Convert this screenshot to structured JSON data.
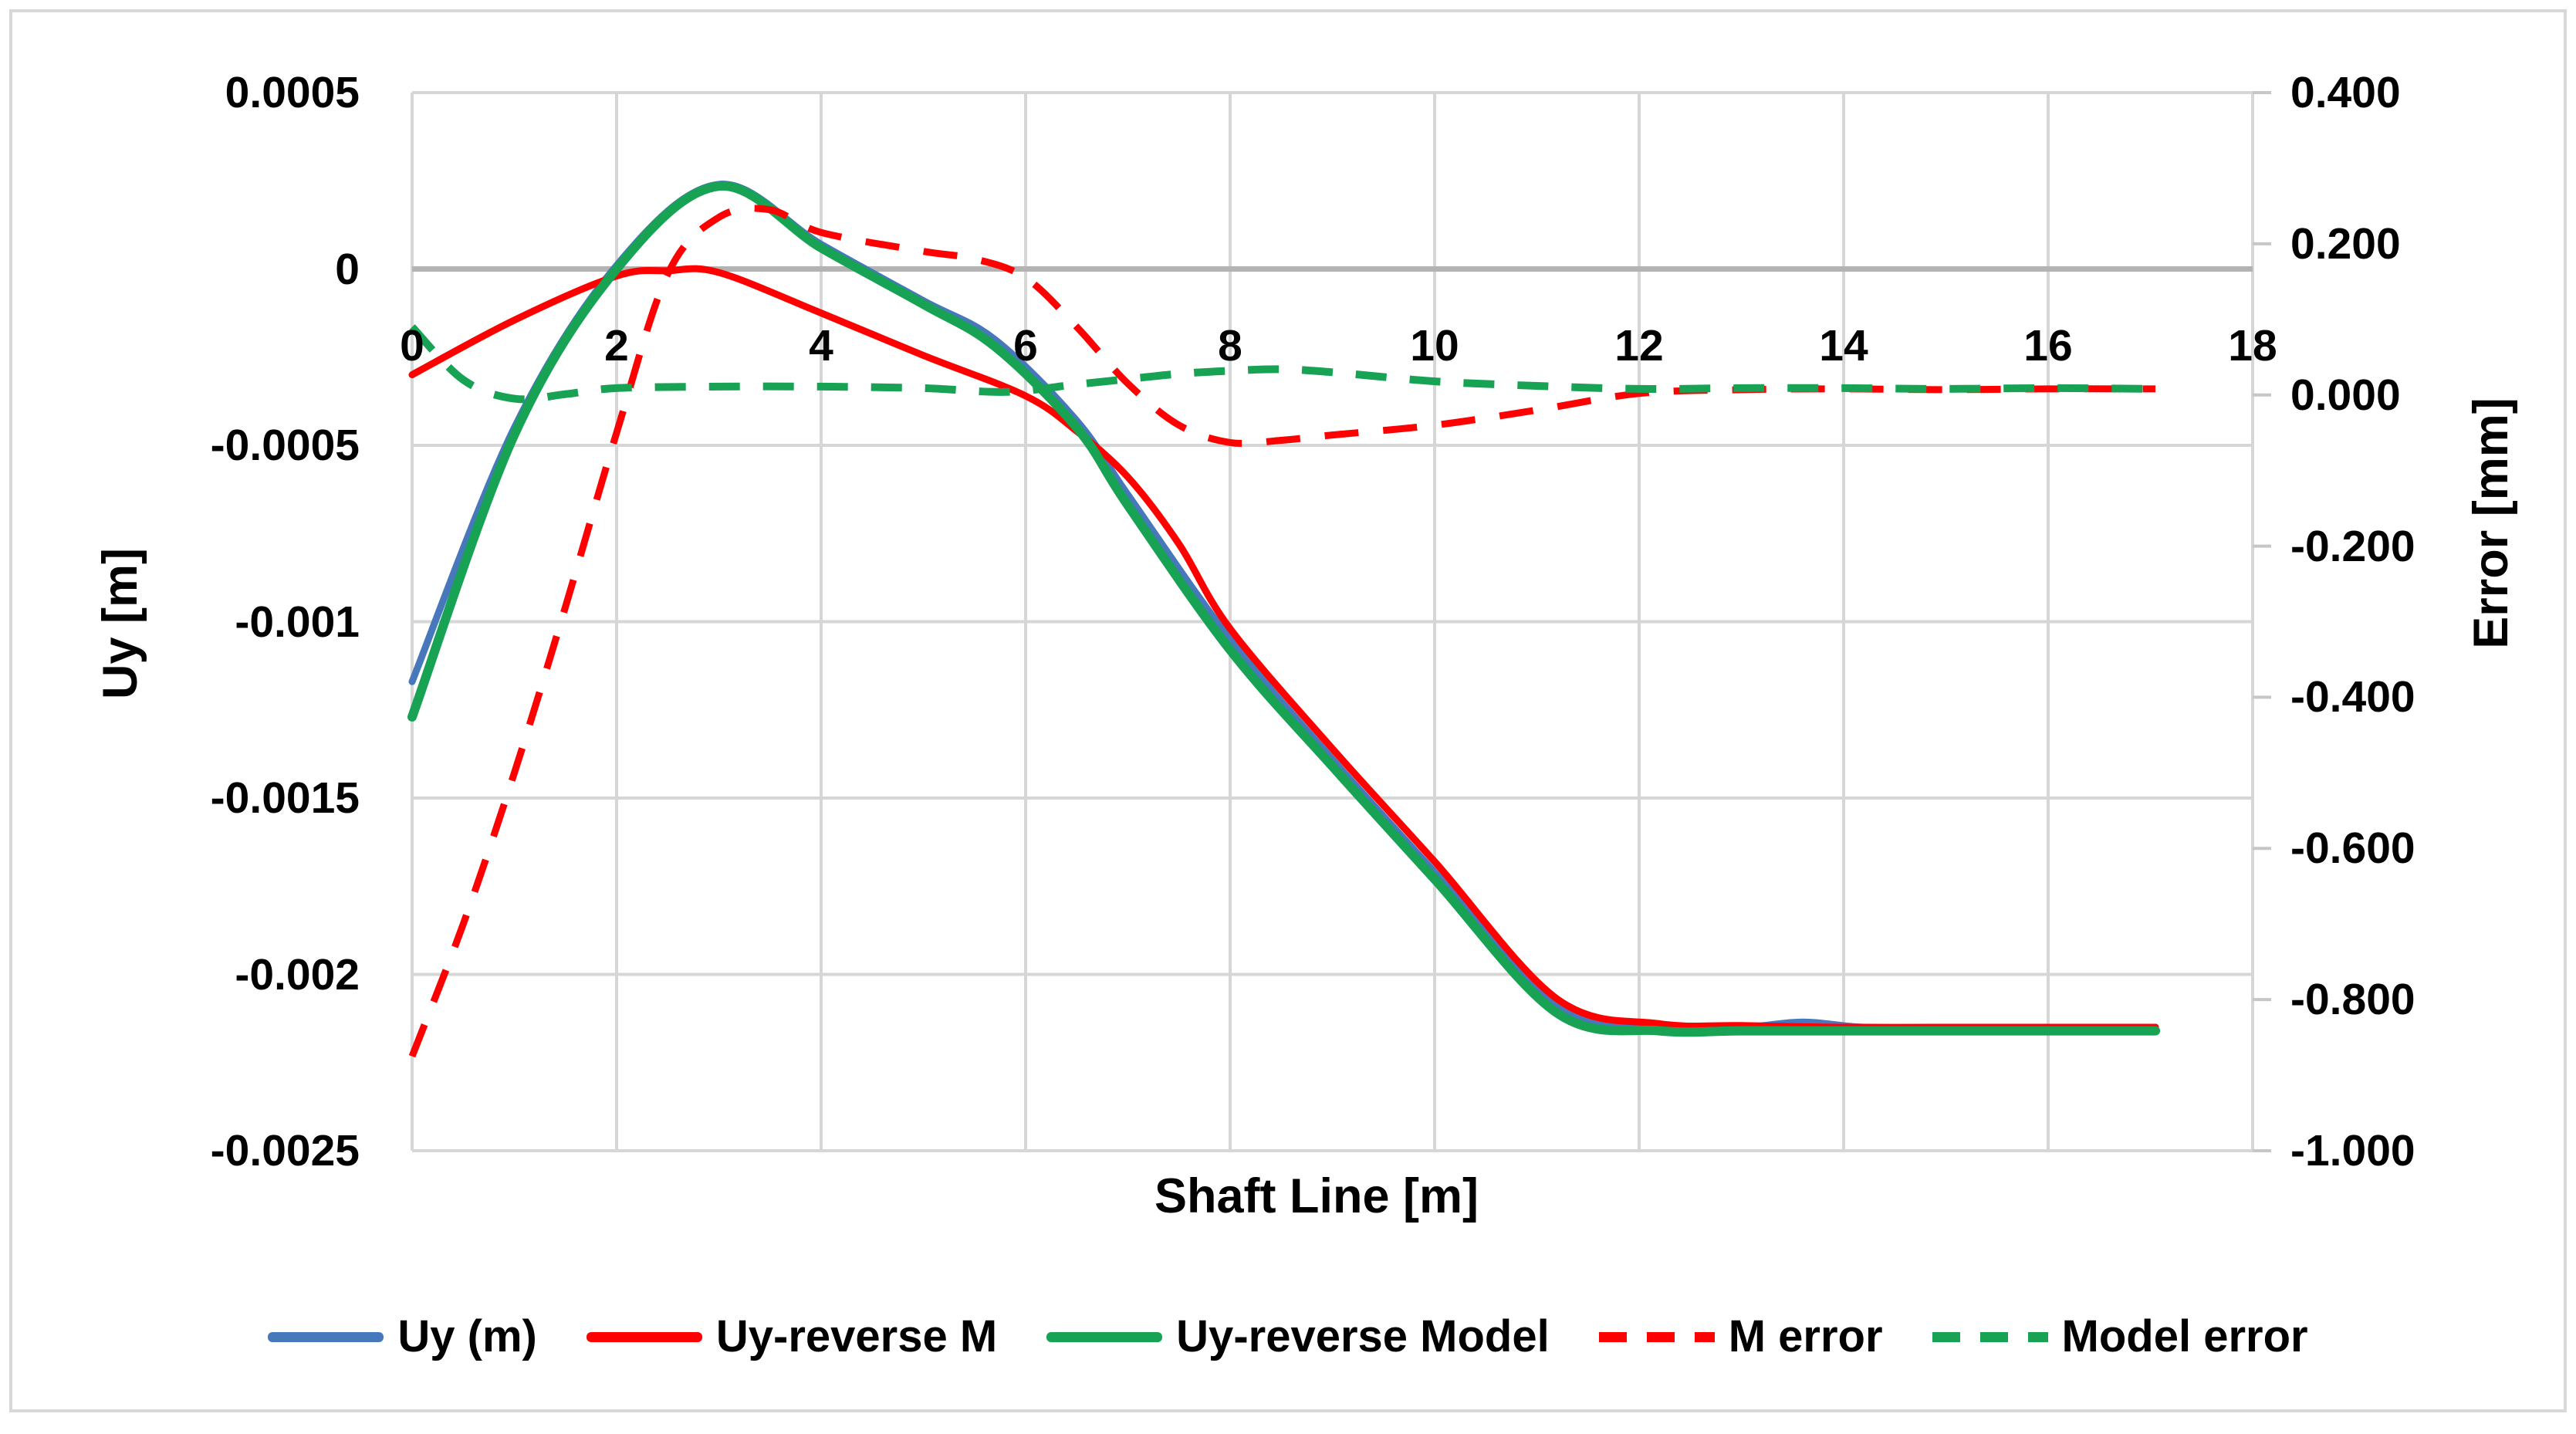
{
  "chart_data": {
    "type": "line",
    "title": "",
    "xlabel": "Shaft Line [m]",
    "ylabel_left": "Uy [m]",
    "ylabel_right": "Error [mm]",
    "grid": true,
    "legend_position": "bottom",
    "x_axis": {
      "min": 0,
      "max": 18,
      "tick_values": [
        0,
        2,
        4,
        6,
        8,
        10,
        12,
        14,
        16,
        18
      ],
      "tick_labels": [
        "0",
        "2",
        "4",
        "6",
        "8",
        "10",
        "12",
        "14",
        "16",
        "18"
      ]
    },
    "y_left": {
      "min": -0.0025,
      "max": 0.0005,
      "tick_values": [
        0.0005,
        0,
        -0.0005,
        -0.001,
        -0.0015,
        -0.002,
        -0.0025
      ],
      "tick_labels": [
        "0.0005",
        "0",
        "-0.0005",
        "-0.001",
        "-0.0015",
        "-0.002",
        "-0.0025"
      ]
    },
    "y_right": {
      "min": -1.0,
      "max": 0.4,
      "tick_values": [
        0.4,
        0.2,
        0.0,
        -0.2,
        -0.4,
        -0.6,
        -0.8,
        -1.0
      ],
      "tick_labels": [
        "0.400",
        "0.200",
        "0.000",
        "-0.200",
        "-0.400",
        "-0.600",
        "-0.800",
        "-1.000"
      ]
    },
    "colors": {
      "grid": "#D6D6D6",
      "zero_axis": "#B3B3B3",
      "tick_mark": "#C6C6C6",
      "text": "#000000",
      "frame": "#D8D8D8"
    },
    "series": [
      {
        "name": "Uy (m)",
        "axis": "left",
        "color": "#4878BC",
        "style": "solid",
        "width": 9,
        "points": [
          [
            0,
            -0.00117
          ],
          [
            1,
            -0.00045
          ],
          [
            2,
            1e-05
          ],
          [
            3,
            0.00024
          ],
          [
            4,
            7e-05
          ],
          [
            5,
            -9e-05
          ],
          [
            5.7,
            -0.0002
          ],
          [
            6.5,
            -0.00043
          ],
          [
            7,
            -0.00064
          ],
          [
            8,
            -0.00105
          ],
          [
            9,
            -0.00139
          ],
          [
            10,
            -0.00171
          ],
          [
            11.2,
            -0.00209
          ],
          [
            12.2,
            -0.002145
          ],
          [
            13,
            -0.00215
          ],
          [
            13.6,
            -0.002135
          ],
          [
            14.2,
            -0.00215
          ],
          [
            15,
            -0.00215
          ],
          [
            16,
            -0.00215
          ],
          [
            17.05,
            -0.00215
          ]
        ]
      },
      {
        "name": "Uy-reverse M",
        "axis": "left",
        "color": "#FF0000",
        "style": "solid",
        "width": 9,
        "points": [
          [
            0,
            -0.0003
          ],
          [
            1,
            -0.000145
          ],
          [
            2,
            -2e-05
          ],
          [
            2.5,
            -5e-06
          ],
          [
            3,
            -1e-05
          ],
          [
            4,
            -0.000125
          ],
          [
            5,
            -0.000245
          ],
          [
            6,
            -0.00036
          ],
          [
            6.5,
            -0.00046
          ],
          [
            7,
            -0.00059
          ],
          [
            7.5,
            -0.00078
          ],
          [
            8,
            -0.00102
          ],
          [
            9,
            -0.00136
          ],
          [
            10,
            -0.00168
          ],
          [
            11.2,
            -0.00207
          ],
          [
            12.2,
            -0.00214
          ],
          [
            13,
            -0.002145
          ],
          [
            14,
            -0.00215
          ],
          [
            15,
            -0.00215
          ],
          [
            16,
            -0.00215
          ],
          [
            17.05,
            -0.00215
          ]
        ]
      },
      {
        "name": "Uy-reverse Model",
        "axis": "left",
        "color": "#17A254",
        "style": "solid",
        "width": 12,
        "points": [
          [
            0,
            -0.00127
          ],
          [
            1,
            -0.00047
          ],
          [
            2,
            0.0
          ],
          [
            3,
            0.000235
          ],
          [
            4,
            6e-05
          ],
          [
            5,
            -0.0001
          ],
          [
            5.7,
            -0.00022
          ],
          [
            6.5,
            -0.00045
          ],
          [
            7,
            -0.00067
          ],
          [
            8,
            -0.00108
          ],
          [
            9,
            -0.00141
          ],
          [
            10,
            -0.00173
          ],
          [
            11.2,
            -0.00211
          ],
          [
            12.2,
            -0.00216
          ],
          [
            13,
            -0.00216
          ],
          [
            14,
            -0.00216
          ],
          [
            15,
            -0.00216
          ],
          [
            16,
            -0.00216
          ],
          [
            17.05,
            -0.00216
          ]
        ]
      },
      {
        "name": "M error",
        "axis": "right",
        "color": "#FF0000",
        "style": "dashed",
        "width": 9,
        "dash": "44 32",
        "points": [
          [
            0,
            -0.875
          ],
          [
            0.5,
            -0.7
          ],
          [
            1,
            -0.5
          ],
          [
            1.5,
            -0.28
          ],
          [
            2,
            -0.05
          ],
          [
            2.5,
            0.16
          ],
          [
            3,
            0.235
          ],
          [
            3.5,
            0.245
          ],
          [
            4,
            0.215
          ],
          [
            5,
            0.19
          ],
          [
            5.5,
            0.18
          ],
          [
            6,
            0.155
          ],
          [
            6.5,
            0.09
          ],
          [
            7,
            0.015
          ],
          [
            7.5,
            -0.04
          ],
          [
            8,
            -0.063
          ],
          [
            8.5,
            -0.06
          ],
          [
            9,
            -0.053
          ],
          [
            10,
            -0.04
          ],
          [
            11,
            -0.02
          ],
          [
            12,
            0.002
          ],
          [
            13,
            0.007
          ],
          [
            14,
            0.008
          ],
          [
            15,
            0.007
          ],
          [
            16,
            0.008
          ],
          [
            17.05,
            0.008
          ]
        ]
      },
      {
        "name": "Model error",
        "axis": "right",
        "color": "#17A254",
        "style": "dashed",
        "width": 10,
        "dash": "40 30",
        "points": [
          [
            0,
            0.09
          ],
          [
            0.5,
            0.02
          ],
          [
            1,
            -0.005
          ],
          [
            1.5,
            0.001
          ],
          [
            2,
            0.009
          ],
          [
            3,
            0.011
          ],
          [
            4,
            0.011
          ],
          [
            5,
            0.009
          ],
          [
            5.8,
            0.004
          ],
          [
            6.5,
            0.014
          ],
          [
            7,
            0.021
          ],
          [
            7.5,
            0.028
          ],
          [
            8,
            0.032
          ],
          [
            8.5,
            0.034
          ],
          [
            9,
            0.03
          ],
          [
            10,
            0.018
          ],
          [
            11,
            0.012
          ],
          [
            12,
            0.008
          ],
          [
            13,
            0.009
          ],
          [
            14,
            0.009
          ],
          [
            15,
            0.008
          ],
          [
            16,
            0.009
          ],
          [
            17.05,
            0.008
          ]
        ]
      }
    ]
  }
}
